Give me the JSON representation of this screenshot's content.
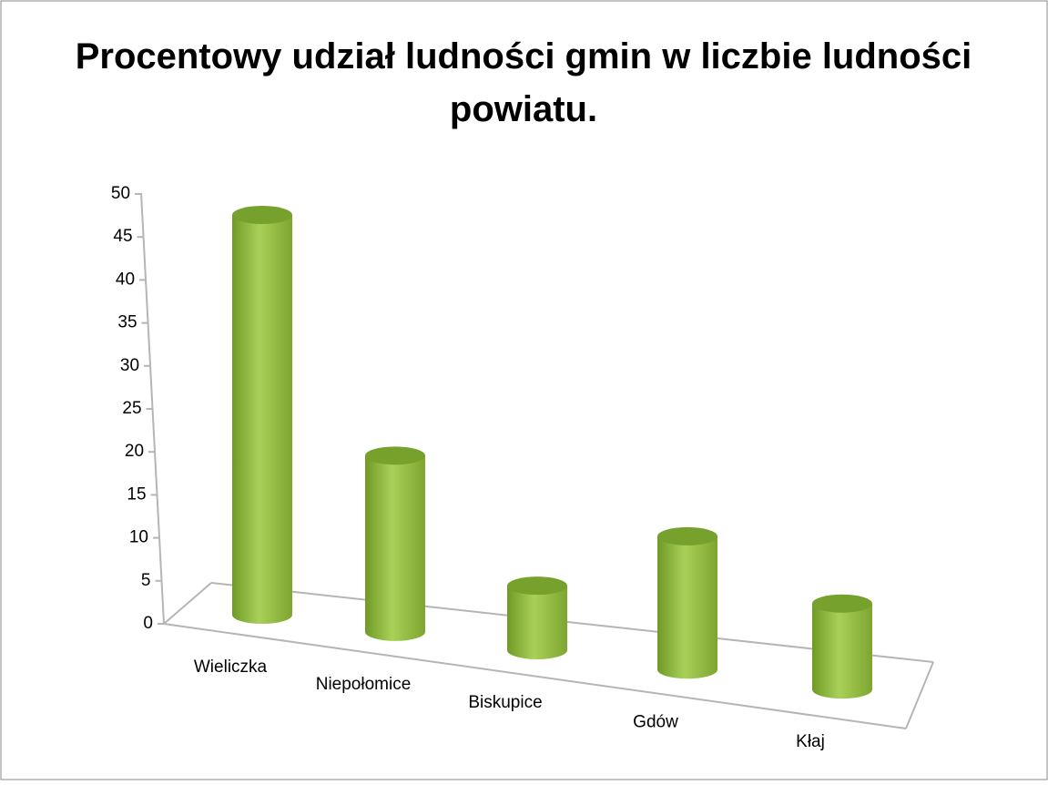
{
  "chart_data": {
    "type": "bar3d",
    "title": "Procentowy udział ludności gmin w liczbie ludności powiatu.",
    "categories": [
      "Wieliczka",
      "Niepołomice",
      "Biskupice",
      "Gdów",
      "Kłaj"
    ],
    "values": [
      46.5,
      20.5,
      7.5,
      15.5,
      10
    ],
    "color": "#8db83a",
    "ylim": [
      0,
      50
    ],
    "yticks": [
      0,
      5,
      10,
      15,
      20,
      25,
      30,
      35,
      40,
      45,
      50
    ]
  }
}
